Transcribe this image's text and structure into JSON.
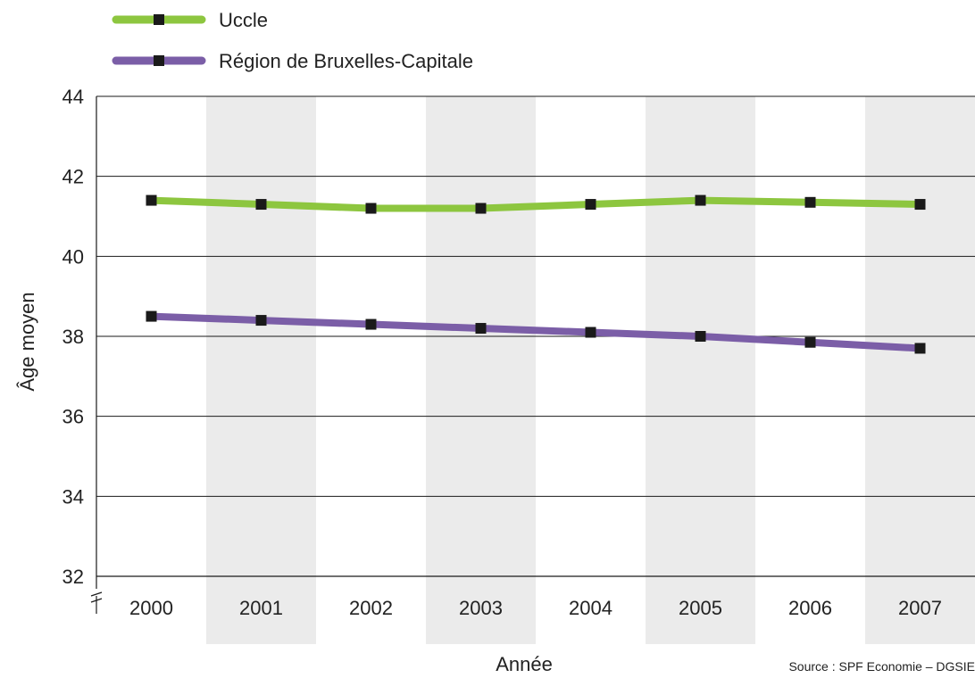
{
  "chart_data": {
    "type": "line",
    "xlabel": "Année",
    "ylabel": "Âge moyen",
    "ylim": [
      32,
      44
    ],
    "yticks": [
      32,
      34,
      36,
      38,
      40,
      42,
      44
    ],
    "categories": [
      "2000",
      "2001",
      "2002",
      "2003",
      "2004",
      "2005",
      "2006",
      "2007"
    ],
    "series": [
      {
        "name": "Uccle",
        "color": "#8dc63f",
        "values": [
          41.4,
          41.3,
          41.2,
          41.2,
          41.3,
          41.4,
          41.35,
          41.3
        ]
      },
      {
        "name": "Région de Bruxelles-Capitale",
        "color": "#7b5ea7",
        "values": [
          38.5,
          38.4,
          38.3,
          38.2,
          38.1,
          38.0,
          37.85,
          37.7
        ]
      }
    ],
    "grid": true,
    "legend_position": "top-left",
    "source": "Source : SPF Economie – DGSIE",
    "band_color": "#ebebeb",
    "marker_color": "#1a1a1a"
  }
}
